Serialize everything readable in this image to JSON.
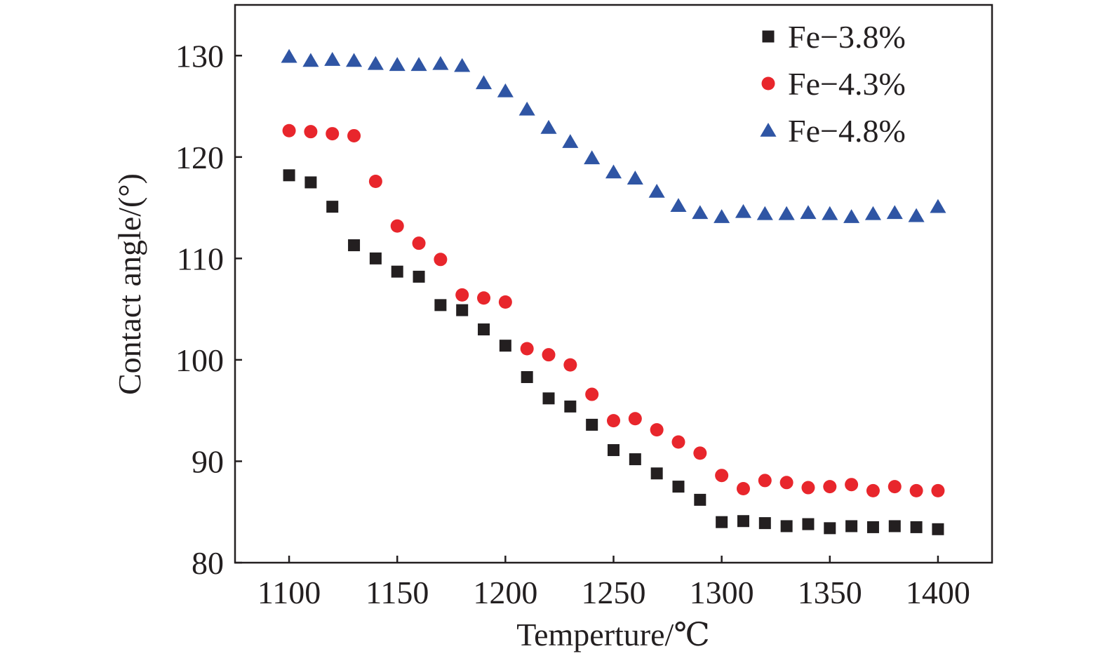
{
  "chart_data": {
    "type": "scatter",
    "title": "",
    "xlabel": "Temperture/℃",
    "ylabel": "Contact angle/(°)",
    "xlim": [
      1075,
      1425
    ],
    "ylim": [
      80,
      135
    ],
    "xticks": [
      1100,
      1150,
      1200,
      1250,
      1300,
      1350,
      1400
    ],
    "yticks": [
      80,
      90,
      100,
      110,
      120,
      130
    ],
    "x": [
      1100,
      1110,
      1120,
      1130,
      1140,
      1150,
      1160,
      1170,
      1180,
      1190,
      1200,
      1210,
      1220,
      1230,
      1240,
      1250,
      1260,
      1270,
      1280,
      1290,
      1300,
      1310,
      1320,
      1330,
      1340,
      1350,
      1360,
      1370,
      1380,
      1390,
      1400
    ],
    "grid": false,
    "legend_position": "top-right",
    "series": [
      {
        "name": "Fe−3.8%",
        "marker": "square",
        "color": "#231f20",
        "values": [
          118.2,
          117.5,
          115.1,
          111.3,
          110.0,
          108.7,
          108.2,
          105.4,
          104.9,
          103.0,
          101.4,
          98.3,
          96.2,
          95.4,
          93.6,
          91.1,
          90.2,
          88.8,
          87.5,
          86.2,
          84.0,
          84.1,
          83.9,
          83.6,
          83.8,
          83.4,
          83.6,
          83.5,
          83.6,
          83.5,
          83.3
        ]
      },
      {
        "name": "Fe−4.3%",
        "marker": "circle",
        "color": "#e8262c",
        "values": [
          122.6,
          122.5,
          122.3,
          122.1,
          117.6,
          113.2,
          111.5,
          109.9,
          106.4,
          106.1,
          105.7,
          101.1,
          100.5,
          99.5,
          96.6,
          94.0,
          94.2,
          93.1,
          91.9,
          90.8,
          88.6,
          87.3,
          88.1,
          87.9,
          87.4,
          87.5,
          87.7,
          87.1,
          87.5,
          87.1,
          87.1
        ]
      },
      {
        "name": "Fe−4.8%",
        "marker": "triangle",
        "color": "#2f55a4",
        "values": [
          129.9,
          129.5,
          129.6,
          129.5,
          129.2,
          129.1,
          129.1,
          129.2,
          129.0,
          127.3,
          126.5,
          124.7,
          122.9,
          121.5,
          119.9,
          118.5,
          117.9,
          116.6,
          115.2,
          114.5,
          114.1,
          114.6,
          114.4,
          114.4,
          114.5,
          114.4,
          114.1,
          114.4,
          114.5,
          114.2,
          115.1
        ]
      }
    ]
  }
}
